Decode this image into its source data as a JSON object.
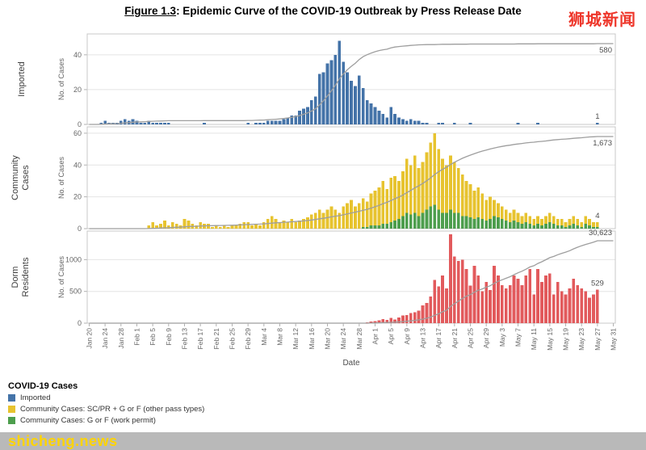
{
  "title": {
    "figure_label": "Figure 1.3",
    "rest": ": Epidemic Curve of the COVID-19 Outbreak by Press Release Date"
  },
  "brand": {
    "text": "狮城新闻"
  },
  "watermark": {
    "text": "shicheng.news"
  },
  "legend": {
    "title": "COVID-19 Cases",
    "items": [
      {
        "label": "Imported",
        "color": "#4473a8"
      },
      {
        "label": "Community Cases: SC/PR + G or F (other pass types)",
        "color": "#e7c32f"
      },
      {
        "label": "Community Cases: G or F (work permit)",
        "color": "#4d9e4d"
      }
    ]
  },
  "chart_data": {
    "type": "stacked-bar+cumulative-line",
    "xlabel": "Date",
    "x_tick_every": 4,
    "line_color": "#9e9e9e",
    "dates": [
      "Jan 20",
      "Jan 21",
      "Jan 22",
      "Jan 23",
      "Jan 24",
      "Jan 25",
      "Jan 26",
      "Jan 27",
      "Jan 28",
      "Jan 29",
      "Jan 30",
      "Jan 31",
      "Feb 1",
      "Feb 2",
      "Feb 3",
      "Feb 4",
      "Feb 5",
      "Feb 6",
      "Feb 7",
      "Feb 8",
      "Feb 9",
      "Feb 10",
      "Feb 11",
      "Feb 12",
      "Feb 13",
      "Feb 14",
      "Feb 15",
      "Feb 16",
      "Feb 17",
      "Feb 18",
      "Feb 19",
      "Feb 20",
      "Feb 21",
      "Feb 22",
      "Feb 23",
      "Feb 24",
      "Feb 25",
      "Feb 26",
      "Feb 27",
      "Feb 28",
      "Feb 29",
      "Mar 1",
      "Mar 2",
      "Mar 3",
      "Mar 4",
      "Mar 5",
      "Mar 6",
      "Mar 7",
      "Mar 8",
      "Mar 9",
      "Mar 10",
      "Mar 11",
      "Mar 12",
      "Mar 13",
      "Mar 14",
      "Mar 15",
      "Mar 16",
      "Mar 17",
      "Mar 18",
      "Mar 19",
      "Mar 20",
      "Mar 21",
      "Mar 22",
      "Mar 23",
      "Mar 24",
      "Mar 25",
      "Mar 26",
      "Mar 27",
      "Mar 28",
      "Mar 29",
      "Mar 30",
      "Mar 31",
      "Apr 1",
      "Apr 2",
      "Apr 3",
      "Apr 4",
      "Apr 5",
      "Apr 6",
      "Apr 7",
      "Apr 8",
      "Apr 9",
      "Apr 10",
      "Apr 11",
      "Apr 12",
      "Apr 13",
      "Apr 14",
      "Apr 15",
      "Apr 16",
      "Apr 17",
      "Apr 18",
      "Apr 19",
      "Apr 20",
      "Apr 21",
      "Apr 22",
      "Apr 23",
      "Apr 24",
      "Apr 25",
      "Apr 26",
      "Apr 27",
      "Apr 28",
      "Apr 29",
      "Apr 30",
      "May 1",
      "May 2",
      "May 3",
      "May 4",
      "May 5",
      "May 6",
      "May 7",
      "May 8",
      "May 9",
      "May 10",
      "May 11",
      "May 12",
      "May 13",
      "May 14",
      "May 15",
      "May 16",
      "May 17",
      "May 18",
      "May 19",
      "May 20",
      "May 21",
      "May 22",
      "May 23",
      "May 24",
      "May 25",
      "May 26",
      "May 27",
      "May 28",
      "May 29",
      "May 30",
      "May 31"
    ],
    "series": {
      "imported": [
        0,
        0,
        0,
        1,
        2,
        1,
        1,
        1,
        2,
        3,
        2,
        3,
        2,
        1,
        1,
        2,
        1,
        1,
        1,
        1,
        1,
        0,
        0,
        0,
        0,
        0,
        0,
        0,
        0,
        1,
        0,
        0,
        0,
        0,
        0,
        0,
        0,
        0,
        0,
        0,
        1,
        0,
        1,
        1,
        1,
        2,
        2,
        2,
        2,
        3,
        4,
        5,
        5,
        8,
        9,
        10,
        14,
        16,
        29,
        30,
        35,
        37,
        40,
        48,
        36,
        30,
        25,
        22,
        28,
        21,
        14,
        12,
        10,
        8,
        6,
        4,
        10,
        6,
        4,
        3,
        2,
        3,
        2,
        2,
        1,
        1,
        0,
        0,
        1,
        1,
        0,
        0,
        1,
        0,
        0,
        0,
        1,
        0,
        0,
        0,
        0,
        0,
        0,
        0,
        0,
        0,
        0,
        0,
        1,
        0,
        0,
        0,
        0,
        1,
        0,
        0,
        0,
        0,
        0,
        0,
        0,
        0,
        0,
        0,
        0,
        0,
        0,
        0,
        1,
        0,
        0,
        0,
        0
      ],
      "community_other": [
        0,
        0,
        0,
        0,
        0,
        0,
        0,
        0,
        0,
        0,
        0,
        0,
        0,
        0,
        0,
        2,
        4,
        2,
        3,
        5,
        2,
        4,
        3,
        2,
        6,
        5,
        3,
        2,
        4,
        3,
        3,
        1,
        2,
        1,
        2,
        1,
        2,
        2,
        3,
        4,
        4,
        2,
        3,
        2,
        4,
        6,
        8,
        6,
        4,
        5,
        4,
        6,
        4,
        5,
        6,
        7,
        9,
        10,
        12,
        10,
        12,
        14,
        12,
        10,
        14,
        16,
        18,
        14,
        16,
        18,
        16,
        20,
        22,
        24,
        27,
        22,
        28,
        28,
        24,
        28,
        34,
        31,
        36,
        30,
        32,
        36,
        40,
        45,
        38,
        34,
        30,
        34,
        32,
        28,
        26,
        22,
        21,
        18,
        19,
        16,
        13,
        14,
        10,
        9,
        8,
        7,
        6,
        7,
        6,
        5,
        6,
        5,
        4,
        5,
        4,
        5,
        6,
        5,
        4,
        4,
        3,
        4,
        5,
        4,
        3,
        5,
        4,
        3,
        3,
        0,
        0,
        0,
        0
      ],
      "community_wp": [
        0,
        0,
        0,
        0,
        0,
        0,
        0,
        0,
        0,
        0,
        0,
        0,
        0,
        0,
        0,
        0,
        0,
        0,
        0,
        0,
        0,
        0,
        0,
        0,
        0,
        0,
        0,
        0,
        0,
        0,
        0,
        0,
        0,
        0,
        0,
        0,
        0,
        0,
        0,
        0,
        0,
        0,
        0,
        0,
        0,
        0,
        0,
        0,
        0,
        0,
        0,
        0,
        0,
        0,
        0,
        0,
        0,
        0,
        0,
        0,
        0,
        0,
        0,
        0,
        0,
        0,
        0,
        0,
        0,
        1,
        1,
        2,
        2,
        2,
        3,
        3,
        4,
        5,
        6,
        8,
        10,
        9,
        10,
        8,
        10,
        12,
        14,
        15,
        12,
        10,
        10,
        12,
        10,
        10,
        8,
        8,
        7,
        6,
        7,
        6,
        5,
        6,
        8,
        7,
        6,
        5,
        4,
        5,
        4,
        3,
        4,
        3,
        2,
        3,
        2,
        3,
        4,
        3,
        2,
        2,
        1,
        2,
        3,
        2,
        1,
        3,
        2,
        1,
        1,
        0,
        0,
        0,
        0
      ],
      "dorm": [
        0,
        0,
        0,
        0,
        0,
        0,
        0,
        0,
        0,
        0,
        0,
        0,
        0,
        0,
        0,
        0,
        0,
        0,
        0,
        0,
        0,
        0,
        0,
        0,
        0,
        0,
        0,
        0,
        0,
        0,
        0,
        0,
        0,
        0,
        0,
        0,
        0,
        0,
        0,
        0,
        0,
        0,
        0,
        0,
        0,
        0,
        0,
        0,
        0,
        0,
        0,
        0,
        0,
        0,
        0,
        0,
        0,
        0,
        0,
        0,
        0,
        0,
        0,
        0,
        0,
        0,
        0,
        0,
        0,
        5,
        10,
        25,
        35,
        45,
        65,
        50,
        80,
        60,
        90,
        120,
        130,
        160,
        170,
        200,
        280,
        320,
        420,
        680,
        580,
        750,
        550,
        1400,
        1050,
        980,
        1000,
        850,
        590,
        900,
        750,
        500,
        650,
        520,
        900,
        750,
        600,
        550,
        600,
        750,
        700,
        600,
        750,
        850,
        450,
        850,
        650,
        750,
        780,
        450,
        650,
        500,
        450,
        550,
        700,
        600,
        550,
        500,
        400,
        450,
        529,
        0,
        0,
        0,
        0
      ]
    },
    "panels": [
      {
        "id": "imported",
        "name": "Imported",
        "name_lines": [
          "Imported"
        ],
        "ylabel": "No. of Cases",
        "yticks": [
          0,
          20,
          40
        ],
        "ymax": 52,
        "series": [
          {
            "key": "imported",
            "color": "#4473a8"
          }
        ],
        "cumulative_label": "580",
        "last_label": "1"
      },
      {
        "id": "community",
        "name": "Community Cases",
        "name_lines": [
          "Community",
          "Cases"
        ],
        "ylabel": "No. of Cases",
        "yticks": [
          0,
          20,
          40,
          60
        ],
        "ymax": 64,
        "series": [
          {
            "key": "community_wp",
            "color": "#4d9e4d"
          },
          {
            "key": "community_other",
            "color": "#e7c32f"
          }
        ],
        "cumulative_label": "1,673",
        "last_label": "4"
      },
      {
        "id": "dorm",
        "name": "Dorm Residents",
        "name_lines": [
          "Dorm",
          "Residents"
        ],
        "ylabel": "No. of Cases",
        "yticks": [
          0,
          500,
          1000
        ],
        "ymax": 1450,
        "series": [
          {
            "key": "dorm",
            "color": "#e25a5c"
          }
        ],
        "cumulative_label": "30,623",
        "last_label": "529"
      }
    ]
  }
}
